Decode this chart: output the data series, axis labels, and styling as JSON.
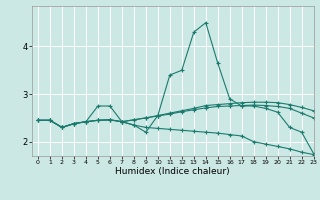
{
  "title": "",
  "xlabel": "Humidex (Indice chaleur)",
  "ylabel": "",
  "bg_color": "#cce8e4",
  "grid_color": "#ffffff",
  "line_color": "#1a7a6e",
  "xlim": [
    -0.5,
    23
  ],
  "ylim": [
    1.7,
    4.85
  ],
  "yticks": [
    2,
    3,
    4
  ],
  "xticks": [
    0,
    1,
    2,
    3,
    4,
    5,
    6,
    7,
    8,
    9,
    10,
    11,
    12,
    13,
    14,
    15,
    16,
    17,
    18,
    19,
    20,
    21,
    22,
    23
  ],
  "series": [
    [
      2.45,
      2.45,
      2.3,
      2.38,
      2.42,
      2.75,
      2.75,
      2.42,
      2.35,
      2.2,
      2.55,
      3.4,
      3.5,
      4.3,
      4.5,
      3.65,
      2.9,
      2.75,
      2.75,
      2.7,
      2.62,
      2.3,
      2.2,
      1.75
    ],
    [
      2.45,
      2.45,
      2.3,
      2.38,
      2.42,
      2.45,
      2.46,
      2.42,
      2.46,
      2.5,
      2.55,
      2.6,
      2.65,
      2.7,
      2.76,
      2.78,
      2.8,
      2.82,
      2.83,
      2.83,
      2.82,
      2.78,
      2.72,
      2.65
    ],
    [
      2.45,
      2.45,
      2.3,
      2.38,
      2.42,
      2.45,
      2.46,
      2.42,
      2.46,
      2.5,
      2.54,
      2.58,
      2.63,
      2.67,
      2.71,
      2.74,
      2.75,
      2.76,
      2.77,
      2.76,
      2.74,
      2.7,
      2.6,
      2.5
    ],
    [
      2.45,
      2.45,
      2.3,
      2.38,
      2.42,
      2.45,
      2.46,
      2.42,
      2.35,
      2.3,
      2.28,
      2.26,
      2.24,
      2.22,
      2.2,
      2.18,
      2.15,
      2.12,
      2.0,
      1.95,
      1.9,
      1.85,
      1.78,
      1.73
    ]
  ]
}
